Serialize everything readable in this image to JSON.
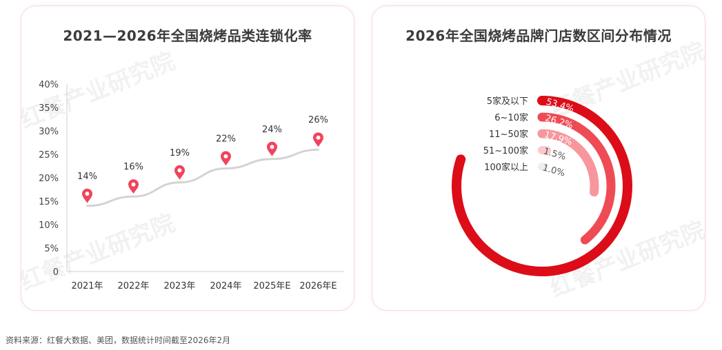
{
  "source_note": "资料来源：红餐大数据、美团，数据统计时间截至2026年2月",
  "watermark": [
    "红餐",
    "产业研究院"
  ],
  "colors": {
    "accent": "#e3101e",
    "pin": "#f0445a",
    "trend_line": "#d3d3d3",
    "panel_border": "#f6d8dc",
    "rings": [
      "#dc0d18",
      "#ef4b55",
      "#f7979d",
      "#f9c9cc",
      "#eeeeee"
    ]
  },
  "chart_data": [
    {
      "type": "line",
      "title": "2021—2026年全国烧烤品类连锁化率",
      "categories": [
        "2021年",
        "2022年",
        "2023年",
        "2024年",
        "2025年E",
        "2026年E"
      ],
      "values": [
        14,
        16,
        19,
        22,
        24,
        26
      ],
      "value_labels": [
        "14%",
        "16%",
        "19%",
        "22%",
        "24%",
        "26%"
      ],
      "y_ticks": [
        "0",
        "5%",
        "10%",
        "15%",
        "20%",
        "25%",
        "30%",
        "35%",
        "40%"
      ],
      "ylim": [
        0,
        40
      ],
      "marker": "pin-icon",
      "grid": false
    },
    {
      "type": "pie",
      "style": "radial-bar",
      "title": "2026年全国烧烤品牌门店数区间分布情况",
      "categories": [
        "5家及以下",
        "6~10家",
        "11~50家",
        "51~100家",
        "100家以上"
      ],
      "values": [
        53.4,
        26.2,
        17.9,
        1.5,
        1.0
      ],
      "value_labels": [
        "53.4%",
        "26.2%",
        "17.9%",
        "1.5%",
        "1.0%"
      ]
    }
  ]
}
